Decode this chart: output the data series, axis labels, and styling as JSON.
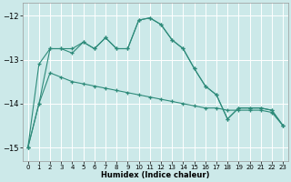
{
  "xlabel": "Humidex (Indice chaleur)",
  "background_color": "#cce9e9",
  "grid_color": "#ffffff",
  "line_color": "#2e8b7a",
  "xlim": [
    -0.5,
    23.5
  ],
  "ylim": [
    -15.3,
    -11.7
  ],
  "yticks": [
    -15,
    -14,
    -13,
    -12
  ],
  "xticks": [
    0,
    1,
    2,
    3,
    4,
    5,
    6,
    7,
    8,
    9,
    10,
    11,
    12,
    13,
    14,
    15,
    16,
    17,
    18,
    19,
    20,
    21,
    22,
    23
  ],
  "s1_x": [
    0,
    1,
    2,
    3,
    4,
    5,
    6,
    7,
    8,
    9,
    10,
    11,
    12,
    13,
    14,
    15,
    16,
    17,
    18,
    19,
    20,
    21,
    22,
    23
  ],
  "s1_y": [
    -15.0,
    -14.0,
    -12.75,
    -12.75,
    -12.85,
    -12.6,
    -12.75,
    -12.5,
    -12.75,
    -12.75,
    -12.1,
    -12.05,
    -12.2,
    -12.55,
    -12.75,
    -13.2,
    -13.6,
    -13.8,
    -14.35,
    -14.1,
    -14.1,
    -14.1,
    -14.15,
    -14.5
  ],
  "s2_x": [
    0,
    1,
    2,
    3,
    4,
    5,
    6,
    7,
    8,
    9,
    10,
    11,
    12,
    13,
    14,
    15,
    16,
    17,
    18,
    19,
    20,
    21,
    22,
    23
  ],
  "s2_y": [
    -15.0,
    -14.0,
    -13.3,
    -13.4,
    -13.5,
    -13.55,
    -13.6,
    -13.65,
    -13.7,
    -13.75,
    -13.8,
    -13.85,
    -13.9,
    -13.95,
    -14.0,
    -14.05,
    -14.1,
    -14.1,
    -14.15,
    -14.15,
    -14.15,
    -14.15,
    -14.2,
    -14.5
  ],
  "s3_x": [
    0,
    1,
    2,
    3,
    4,
    5,
    6,
    7,
    8,
    9,
    10,
    11,
    12,
    13,
    14,
    15,
    16,
    17,
    18,
    19,
    20,
    21,
    22,
    23
  ],
  "s3_y": [
    -15.0,
    -13.1,
    -12.75,
    -12.75,
    -12.75,
    -12.6,
    -12.75,
    -12.5,
    -12.75,
    -12.75,
    -12.1,
    -12.05,
    -12.2,
    -12.55,
    -12.75,
    -13.2,
    -13.6,
    -13.8,
    -14.35,
    -14.1,
    -14.1,
    -14.1,
    -14.15,
    -14.5
  ]
}
